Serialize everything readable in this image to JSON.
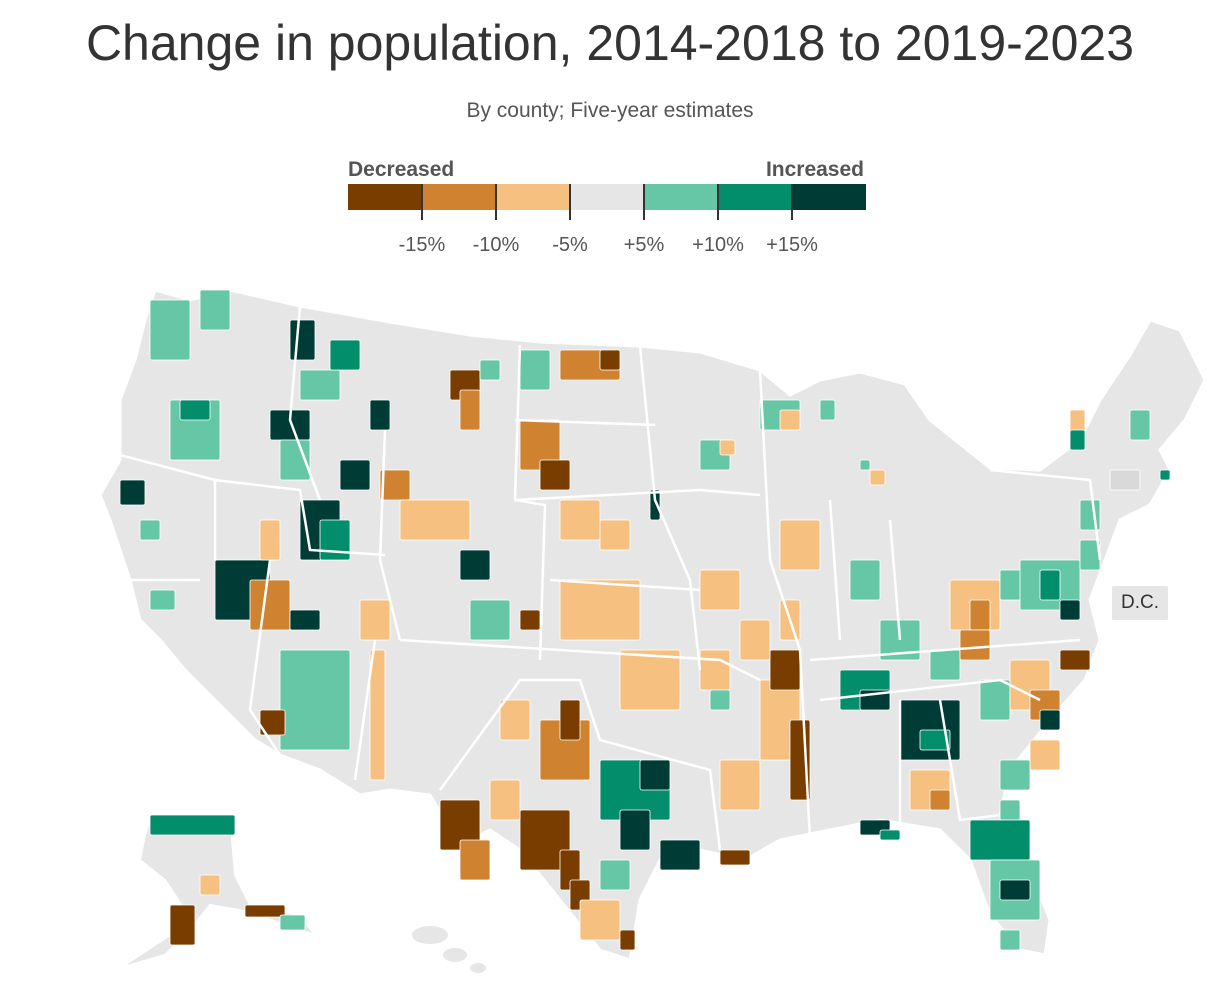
{
  "title": "Change in population, 2014‑2018 to 2019‑2023",
  "subtitle": "By county; Five‑year estimates",
  "legend": {
    "decreased_label": "Decreased",
    "increased_label": "Increased",
    "bins": [
      {
        "color": "#7a3d00"
      },
      {
        "color": "#cf8330"
      },
      {
        "color": "#f6c081"
      },
      {
        "color": "#e6e6e6"
      },
      {
        "color": "#66c7a7"
      },
      {
        "color": "#038e6b"
      },
      {
        "color": "#003c36"
      }
    ],
    "ticks": [
      "-15%",
      "-10%",
      "-5%",
      "+5%",
      "+10%",
      "+15%"
    ]
  },
  "map": {
    "dc_label": "D.C.",
    "base_color": "#e6e6e6",
    "border_color": "#ffffff"
  },
  "chart_data": {
    "type": "choropleth",
    "title": "Change in population, 2014‑2018 to 2019‑2023",
    "subtitle": "By county; Five‑year estimates",
    "unit": "%",
    "bins": [
      {
        "label": "Decreased",
        "min": null,
        "max": -15,
        "color": "#7a3d00"
      },
      {
        "min": -15,
        "max": -10,
        "color": "#cf8330"
      },
      {
        "min": -10,
        "max": -5,
        "color": "#f6c081"
      },
      {
        "min": -5,
        "max": 5,
        "color": "#e6e6e6"
      },
      {
        "min": 5,
        "max": 10,
        "color": "#66c7a7"
      },
      {
        "min": 10,
        "max": 15,
        "color": "#038e6b"
      },
      {
        "label": "Increased",
        "min": 15,
        "max": null,
        "color": "#003c36"
      }
    ],
    "geography": "US counties"
  }
}
